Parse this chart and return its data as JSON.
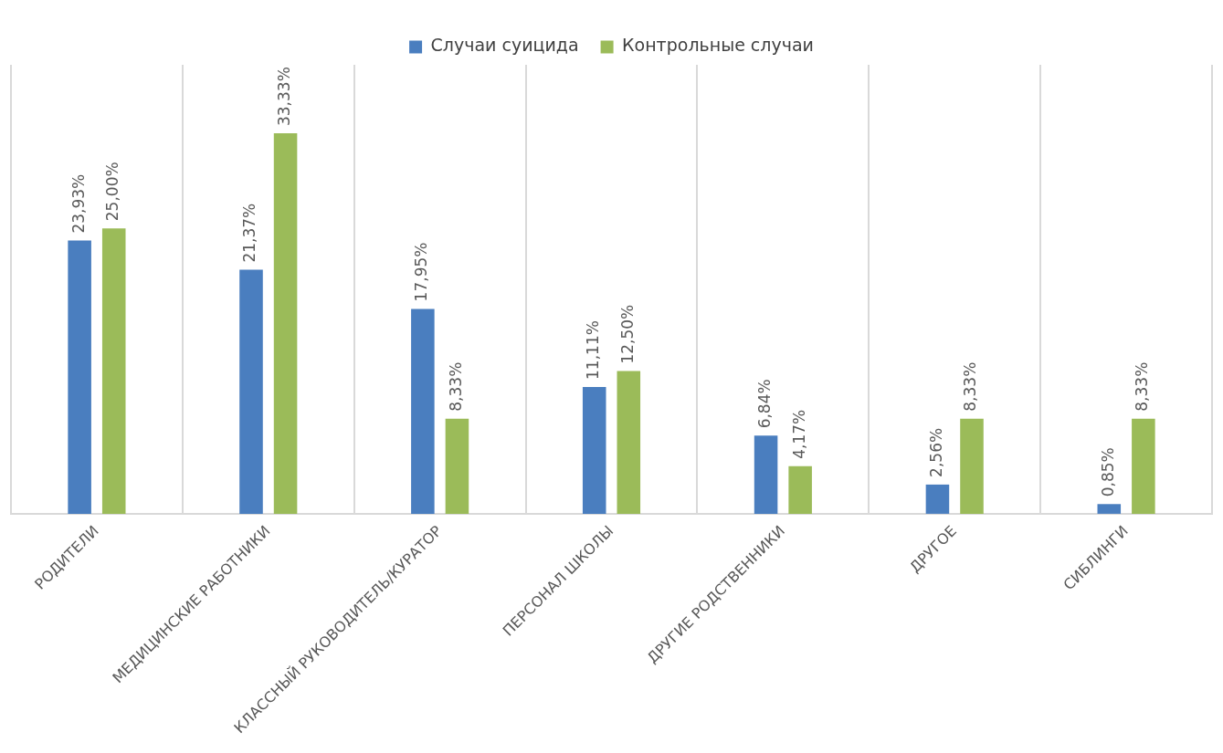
{
  "chart_data": {
    "type": "bar",
    "categories": [
      "РОДИТЕЛИ",
      "МЕДИЦИНСКИЕ РАБОТНИКИ",
      "КЛАССНЫЙ РУКОВОДИТЕЛЬ/КУРАТОР",
      "ПЕРСОНАЛ ШКОЛЫ",
      "ДРУГИЕ РОДСТВЕННИКИ",
      "ДРУГОЕ",
      "СИБЛИНГИ"
    ],
    "series": [
      {
        "name": "Случаи суицида",
        "color": "#4a7ebf",
        "values": [
          23.93,
          21.37,
          17.95,
          11.11,
          6.84,
          2.56,
          0.85
        ],
        "value_labels": [
          "23,93%",
          "21,37%",
          "17,95%",
          "11,11%",
          "6,84%",
          "2,56%",
          "0,85%"
        ]
      },
      {
        "name": "Контрольные случаи",
        "color": "#9bbb59",
        "values": [
          25.0,
          33.33,
          8.33,
          12.5,
          4.17,
          8.33,
          8.33
        ],
        "value_labels": [
          "25,00%",
          "33,33%",
          "8,33%",
          "12,50%",
          "4,17%",
          "8,33%",
          "8,33%"
        ]
      }
    ],
    "grid": "x",
    "legend": "top"
  }
}
